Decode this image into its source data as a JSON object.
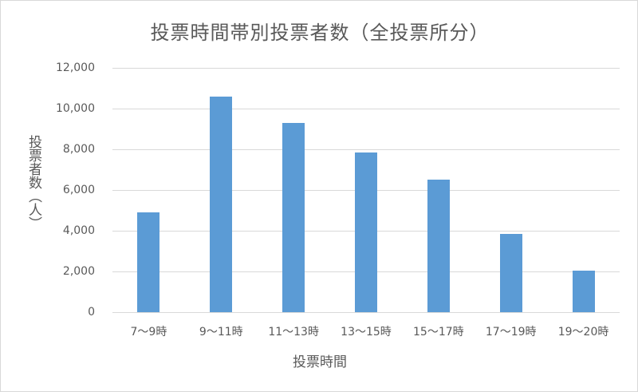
{
  "chart_data": {
    "type": "bar",
    "title": "投票時間帯別投票者数（全投票所分）",
    "xlabel": "投票時間",
    "ylabel": "投票者数（人）",
    "categories": [
      "7〜9時",
      "9〜11時",
      "11〜13時",
      "13〜15時",
      "15〜17時",
      "17〜19時",
      "19〜20時"
    ],
    "series": [
      {
        "name": "投票者数",
        "color": "#5b9bd5",
        "values": [
          4900,
          10590,
          9290,
          7840,
          6510,
          3840,
          2040
        ]
      }
    ],
    "ylim": [
      0,
      12000
    ],
    "yticks": [
      0,
      2000,
      4000,
      6000,
      8000,
      10000,
      12000
    ],
    "ytick_labels": [
      "0",
      "2,000",
      "4,000",
      "6,000",
      "8,000",
      "10,000",
      "12,000"
    ],
    "grid": true,
    "legend": "none"
  },
  "colors": {
    "bar": "#5b9bd5",
    "gridline": "#d9d9d9",
    "text": "#595959",
    "frame": "#d9d9d9"
  }
}
